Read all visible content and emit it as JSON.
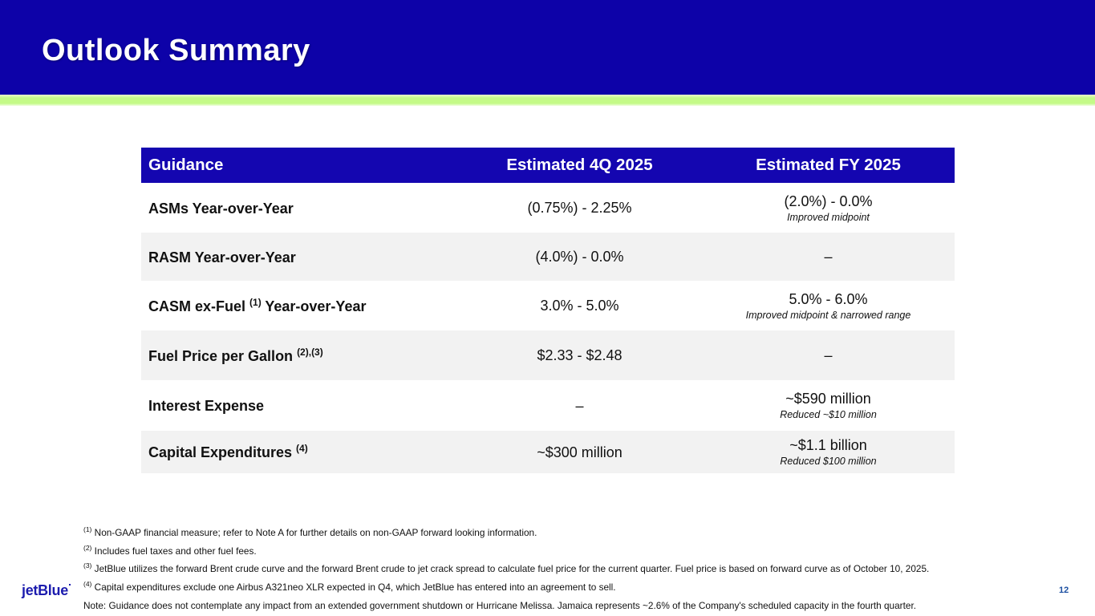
{
  "slide": {
    "title": "Outlook Summary",
    "logo_text": "jetBlue",
    "page_number": "12"
  },
  "colors": {
    "title_bar_blue": "#0d02a8",
    "table_header_blue": "#1406b0",
    "accent_green": "#c4fa88",
    "row_alt_gray": "#f2f2f2",
    "logo_blue": "#1c1cae"
  },
  "table": {
    "columns": [
      "Guidance",
      "Estimated 4Q 2025",
      "Estimated FY 2025"
    ],
    "rows": [
      {
        "label_pre": "ASMs Year-over-Year",
        "label_sup": "",
        "label_post": "",
        "q4": "(0.75%) - 2.25%",
        "fy": "(2.0%) - 0.0%",
        "fy_note": "Improved midpoint"
      },
      {
        "label_pre": "RASM Year-over-Year",
        "label_sup": "",
        "label_post": "",
        "q4": "(4.0%) - 0.0%",
        "fy": "–",
        "fy_note": ""
      },
      {
        "label_pre": "CASM ex-Fuel ",
        "label_sup": "(1)",
        "label_post": " Year-over-Year",
        "q4": "3.0% - 5.0%",
        "fy": "5.0% - 6.0%",
        "fy_note": "Improved midpoint & narrowed range"
      },
      {
        "label_pre": "Fuel Price per Gallon ",
        "label_sup": "(2),(3)",
        "label_post": "",
        "q4": "$2.33 - $2.48",
        "fy": "–",
        "fy_note": ""
      },
      {
        "label_pre": "Interest Expense",
        "label_sup": "",
        "label_post": "",
        "q4": "–",
        "fy": "~$590 million",
        "fy_note": "Reduced ~$10 million"
      },
      {
        "label_pre": "Capital Expenditures ",
        "label_sup": "(4)",
        "label_post": "",
        "q4": "~$300 million",
        "fy": "~$1.1 billion",
        "fy_note": "Reduced $100 million"
      }
    ]
  },
  "footnotes": [
    {
      "sup": "(1)",
      "text": " Non-GAAP financial measure; refer to Note A for further details on non-GAAP forward looking information."
    },
    {
      "sup": "(2)",
      "text": " Includes fuel taxes and other fuel fees."
    },
    {
      "sup": "(3)",
      "text": " JetBlue utilizes the forward Brent crude curve and the forward Brent crude to jet crack spread to calculate fuel price for the current quarter. Fuel price is based on forward curve as of October 10, 2025."
    },
    {
      "sup": "(4)",
      "text": " Capital expenditures exclude one Airbus A321neo XLR expected in Q4, which JetBlue has entered into an agreement to sell."
    },
    {
      "sup": "",
      "text": "Note: Guidance does not contemplate any impact from an extended government shutdown or Hurricane Melissa. Jamaica represents ~2.6% of the Company's scheduled capacity in the fourth quarter."
    }
  ]
}
